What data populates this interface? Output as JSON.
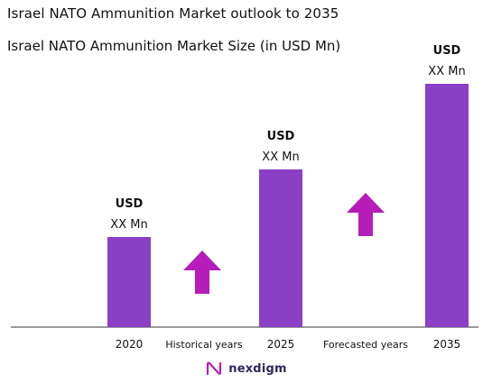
{
  "title": "Israel NATO Ammunition Market outlook to 2035",
  "subtitle": "Israel NATO Ammunition Market Size (in USD Mn)",
  "logo_text": "nexdigm",
  "colors": {
    "bar": "#8b3fc6",
    "arrow": "#b51cb8",
    "axis": "#333333"
  },
  "chart_data": {
    "type": "bar",
    "categories": [
      "2020",
      "2025",
      "2035"
    ],
    "values": [
      1,
      1.75,
      2.7
    ],
    "value_labels": [
      {
        "line1": "USD",
        "line2": "XX Mn"
      },
      {
        "line1": "USD",
        "line2": "XX Mn"
      },
      {
        "line1": "USD",
        "line2": "XX Mn"
      }
    ],
    "period_labels": [
      "Historical years",
      "Forecasted years"
    ],
    "grid": false
  }
}
